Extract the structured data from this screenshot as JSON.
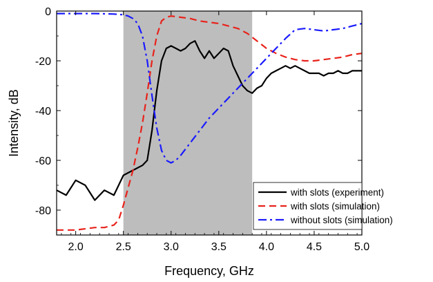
{
  "chart_data": {
    "type": "line",
    "title": "",
    "xlabel": "Frequency, GHz",
    "ylabel": "Intensity, dB",
    "xlim": [
      1.8,
      5.0
    ],
    "ylim": [
      -90,
      0
    ],
    "grid": false,
    "legend_position": "bottom-right",
    "xticks": [
      2.0,
      2.5,
      3.0,
      3.5,
      4.0,
      4.5,
      5.0
    ],
    "xtick_labels": [
      "2.0",
      "2.5",
      "3.0",
      "3.5",
      "4.0",
      "4.5",
      "5.0"
    ],
    "yticks": [
      -80,
      -60,
      -40,
      -20,
      0
    ],
    "ytick_labels": [
      "-80",
      "-60",
      "-40",
      "-20",
      "0"
    ],
    "shaded_band": {
      "x_range": [
        2.5,
        3.85
      ],
      "color": "#bdbdbd"
    },
    "series": [
      {
        "name": "with slots (experiment)",
        "style": "solid",
        "color": "#000000",
        "x": [
          1.8,
          1.9,
          2.0,
          2.1,
          2.2,
          2.3,
          2.4,
          2.5,
          2.6,
          2.7,
          2.75,
          2.8,
          2.85,
          2.9,
          2.95,
          3.0,
          3.05,
          3.1,
          3.15,
          3.2,
          3.25,
          3.3,
          3.35,
          3.4,
          3.45,
          3.5,
          3.55,
          3.6,
          3.65,
          3.7,
          3.75,
          3.8,
          3.85,
          3.9,
          3.95,
          4.0,
          4.05,
          4.1,
          4.15,
          4.2,
          4.25,
          4.3,
          4.35,
          4.4,
          4.45,
          4.5,
          4.55,
          4.6,
          4.65,
          4.7,
          4.75,
          4.8,
          4.85,
          4.9,
          4.95,
          5.0
        ],
        "y": [
          -72,
          -74,
          -68,
          -70,
          -76,
          -72,
          -74,
          -66,
          -64,
          -62,
          -60,
          -48,
          -32,
          -20,
          -15,
          -14,
          -15,
          -16,
          -15,
          -13,
          -12,
          -16,
          -19,
          -16,
          -19,
          -17,
          -15,
          -16,
          -22,
          -26,
          -30,
          -32,
          -33,
          -31,
          -30,
          -27,
          -25,
          -24,
          -23,
          -22,
          -23,
          -22,
          -23,
          -24,
          -25,
          -25,
          -25,
          -26,
          -25,
          -25,
          -24,
          -25,
          -25,
          -24,
          -24,
          -24
        ]
      },
      {
        "name": "with slots (simulation)",
        "style": "dashed",
        "color": "#e8221b",
        "x": [
          1.8,
          2.0,
          2.2,
          2.3,
          2.4,
          2.45,
          2.5,
          2.55,
          2.6,
          2.65,
          2.7,
          2.75,
          2.8,
          2.85,
          2.9,
          2.95,
          3.0,
          3.1,
          3.2,
          3.3,
          3.4,
          3.5,
          3.6,
          3.7,
          3.8,
          3.9,
          4.0,
          4.1,
          4.2,
          4.3,
          4.4,
          4.5,
          4.6,
          4.7,
          4.8,
          4.9,
          5.0
        ],
        "y": [
          -88,
          -88,
          -87,
          -87,
          -86,
          -84,
          -78,
          -71,
          -64,
          -55,
          -45,
          -33,
          -20,
          -10,
          -4,
          -2.5,
          -2,
          -2.5,
          -3,
          -4,
          -4.5,
          -5,
          -6,
          -7,
          -9,
          -12,
          -15,
          -17,
          -18.5,
          -19.5,
          -20,
          -20,
          -19.5,
          -19,
          -18.5,
          -17.5,
          -17
        ]
      },
      {
        "name": "without slots (simulation)",
        "style": "dashdot",
        "color": "#1a1aff",
        "x": [
          1.8,
          2.0,
          2.2,
          2.4,
          2.5,
          2.55,
          2.6,
          2.65,
          2.7,
          2.75,
          2.8,
          2.85,
          2.9,
          2.95,
          3.0,
          3.05,
          3.1,
          3.2,
          3.3,
          3.4,
          3.5,
          3.6,
          3.7,
          3.8,
          3.9,
          4.0,
          4.1,
          4.2,
          4.3,
          4.4,
          4.5,
          4.6,
          4.7,
          4.8,
          4.9,
          5.0
        ],
        "y": [
          -1,
          -1,
          -1,
          -1.2,
          -1.5,
          -2,
          -3,
          -5,
          -10,
          -20,
          -34,
          -47,
          -56,
          -60,
          -61,
          -60,
          -58,
          -53,
          -48,
          -43,
          -39,
          -35,
          -31,
          -27,
          -23,
          -19,
          -15,
          -11,
          -7.5,
          -7,
          -7.5,
          -8,
          -7.5,
          -7,
          -6,
          -5
        ]
      }
    ]
  }
}
